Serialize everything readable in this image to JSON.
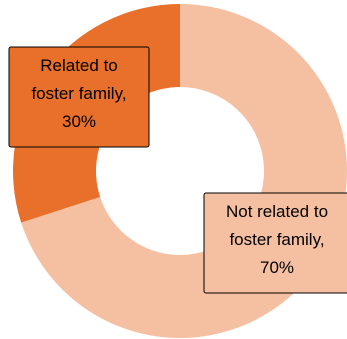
{
  "chart_data": {
    "type": "pie",
    "variant": "donut",
    "title": "",
    "start_angle_deg": 0,
    "direction": "clockwise",
    "slices": [
      {
        "label_lines": [
          "Not related to",
          "foster family,",
          "70%"
        ],
        "value": 70,
        "color": "#f5c0a1"
      },
      {
        "label_lines": [
          "Related to",
          "foster family,",
          "30%"
        ],
        "value": 30,
        "color": "#e8702a"
      }
    ],
    "legend": "none",
    "label_style": "boxed callout over slice"
  }
}
